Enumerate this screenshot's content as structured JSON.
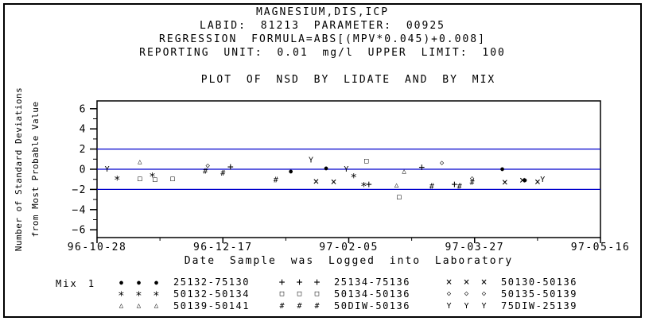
{
  "titles": [
    "MAGNESIUM,DIS,ICP",
    "LABID: 81213 PARAMETER: 00925",
    "REGRESSION FORMULA=ABS[(MPV*0.045)+0.008]",
    "REPORTING UNIT: 0.01 mg/l  UPPER LIMIT: 100"
  ],
  "plot_title": "PLOT OF NSD BY LIDATE AND BY MIX",
  "colors": {
    "foreground": "#000000",
    "reference_line": "#0000cc",
    "background": "#ffffff"
  },
  "marker_glyphs": {
    "dot": "●",
    "star": "∗",
    "triangle": "△",
    "plus": "+",
    "square": "□",
    "hash": "#",
    "x": "×",
    "diamond": "◇",
    "Y": "Y"
  },
  "chart_data": {
    "type": "scatter",
    "title": "PLOT OF NSD BY LIDATE AND BY MIX",
    "xlabel": "Date Sample was Logged into Laboratory",
    "ylabel_lines": [
      "Number of Standard Deviations",
      "from Most Probable Value"
    ],
    "x_unit": "days since 96-10-28",
    "x_tick_days": [
      0,
      50,
      100,
      150,
      200
    ],
    "x_tick_labels": [
      "96-10-28",
      "96-12-17",
      "97-02-05",
      "97-03-27",
      "97-05-16"
    ],
    "xlim_days": [
      0,
      200
    ],
    "y_ticks": [
      -6,
      -4,
      -2,
      0,
      2,
      4,
      6
    ],
    "ylim": [
      -6.75,
      6.75
    ],
    "grid": false,
    "reference_lines_y": [
      2,
      0,
      -2
    ],
    "series": [
      {
        "name": "25132-75130",
        "marker": "dot",
        "points": [
          [
            77,
            -0.2
          ],
          [
            91,
            0.1
          ],
          [
            161,
            0.05
          ],
          [
            170,
            -1.05
          ]
        ]
      },
      {
        "name": "50132-50134",
        "marker": "star",
        "points": [
          [
            8,
            -0.9
          ],
          [
            22,
            -0.6
          ],
          [
            102,
            -0.65
          ],
          [
            106,
            -1.55
          ]
        ]
      },
      {
        "name": "50139-50141",
        "marker": "triangle",
        "points": [
          [
            17,
            0.7
          ],
          [
            119,
            -1.6
          ],
          [
            122,
            -0.25
          ]
        ]
      },
      {
        "name": "25134-75136",
        "marker": "plus",
        "points": [
          [
            53,
            0.2
          ],
          [
            108,
            -1.55
          ],
          [
            129,
            0.15
          ],
          [
            142,
            -1.55
          ]
        ]
      },
      {
        "name": "50134-50136",
        "marker": "square",
        "points": [
          [
            17,
            -1.0
          ],
          [
            23,
            -1.05
          ],
          [
            30,
            -1.0
          ],
          [
            107,
            0.8
          ],
          [
            120,
            -2.8
          ]
        ]
      },
      {
        "name": "50DIW-50136",
        "marker": "hash",
        "points": [
          [
            43,
            -0.25
          ],
          [
            50,
            -0.45
          ],
          [
            71,
            -1.1
          ],
          [
            133,
            -1.75
          ],
          [
            144,
            -1.75
          ],
          [
            149,
            -1.35
          ]
        ]
      },
      {
        "name": "50130-50136",
        "marker": "x",
        "points": [
          [
            87,
            -1.25
          ],
          [
            94,
            -1.3
          ],
          [
            162,
            -1.35
          ],
          [
            169,
            -1.15
          ],
          [
            175,
            -1.3
          ]
        ]
      },
      {
        "name": "50135-50139",
        "marker": "diamond",
        "points": [
          [
            44,
            0.3
          ],
          [
            137,
            0.6
          ],
          [
            149,
            -0.95
          ]
        ]
      },
      {
        "name": "75DIW-25139",
        "marker": "Y",
        "points": [
          [
            4,
            -0.05
          ],
          [
            85,
            0.85
          ],
          [
            99,
            -0.05
          ],
          [
            177,
            -1.05
          ]
        ]
      }
    ]
  },
  "legend": {
    "mix_label": "Mix 1",
    "columns": [
      [
        {
          "marker": "dot",
          "label": "25132-75130"
        },
        {
          "marker": "star",
          "label": "50132-50134"
        },
        {
          "marker": "triangle",
          "label": "50139-50141"
        }
      ],
      [
        {
          "marker": "plus",
          "label": "25134-75136"
        },
        {
          "marker": "square",
          "label": "50134-50136"
        },
        {
          "marker": "hash",
          "label": "50DIW-50136"
        }
      ],
      [
        {
          "marker": "x",
          "label": "50130-50136"
        },
        {
          "marker": "diamond",
          "label": "50135-50139"
        },
        {
          "marker": "Y",
          "label": "75DIW-25139"
        }
      ]
    ]
  }
}
